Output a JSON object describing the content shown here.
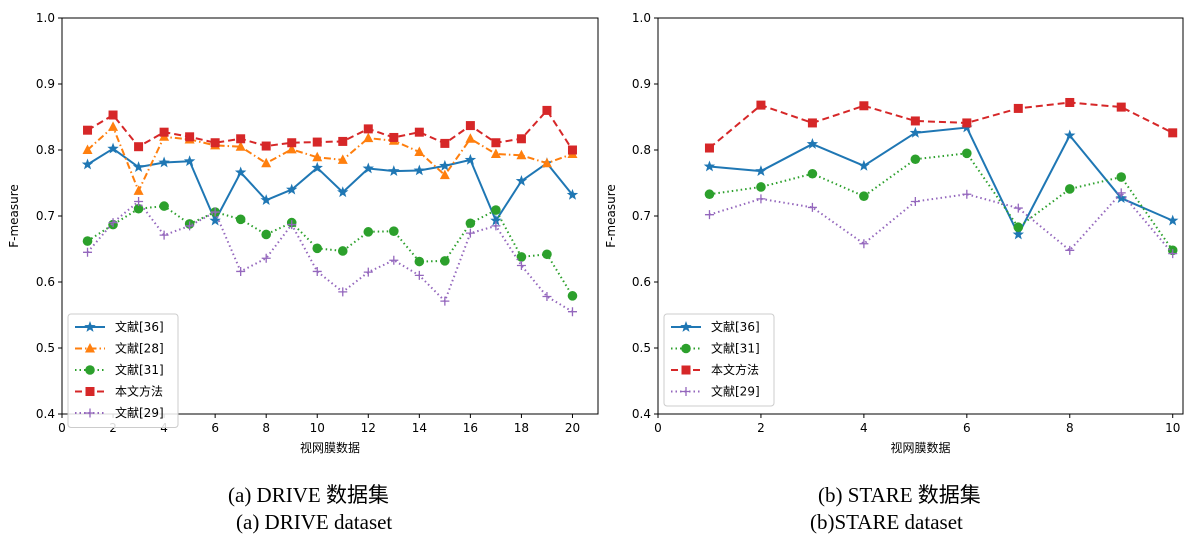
{
  "colors": {
    "blue": "#1f77b4",
    "orange": "#ff7f0e",
    "green": "#2ca02c",
    "red": "#d62728",
    "purple": "#9467bd"
  },
  "captions": {
    "a_cn": "(a) DRIVE 数据集",
    "a_en": "(a) DRIVE dataset",
    "b_cn": "(b) STARE 数据集",
    "b_en": "(b)STARE dataset"
  },
  "chart_data": [
    {
      "type": "line",
      "xlabel": "视网膜数据",
      "ylabel": "F-measure",
      "xlim": [
        0,
        21
      ],
      "ylim": [
        0.4,
        1.0
      ],
      "xticks": [
        0,
        2,
        4,
        6,
        8,
        10,
        12,
        14,
        16,
        18,
        20
      ],
      "yticks": [
        0.4,
        0.5,
        0.6,
        0.7,
        0.8,
        0.9,
        1.0
      ],
      "grid": false,
      "legend_position": "lower-left",
      "x": [
        1,
        2,
        3,
        4,
        5,
        6,
        7,
        8,
        9,
        10,
        11,
        12,
        13,
        14,
        15,
        16,
        17,
        18,
        19,
        20
      ],
      "series": [
        {
          "name": "文献[36]",
          "color": "#1f77b4",
          "style": "solid",
          "marker": "star",
          "values": [
            0.778,
            0.802,
            0.774,
            0.781,
            0.783,
            0.693,
            0.766,
            0.724,
            0.74,
            0.773,
            0.736,
            0.772,
            0.768,
            0.769,
            0.776,
            0.785,
            0.693,
            0.753,
            0.78,
            0.732
          ]
        },
        {
          "name": "文献[28]",
          "color": "#ff7f0e",
          "style": "dashdot",
          "marker": "triangle",
          "values": [
            0.8,
            0.835,
            0.738,
            0.82,
            0.816,
            0.807,
            0.805,
            0.78,
            0.801,
            0.789,
            0.785,
            0.818,
            0.814,
            0.797,
            0.762,
            0.817,
            0.794,
            0.792,
            0.78,
            0.794
          ]
        },
        {
          "name": "文献[31]",
          "color": "#2ca02c",
          "style": "dotted",
          "marker": "circle",
          "values": [
            0.662,
            0.687,
            0.711,
            0.715,
            0.688,
            0.706,
            0.695,
            0.672,
            0.69,
            0.651,
            0.647,
            0.676,
            0.677,
            0.631,
            0.632,
            0.689,
            0.709,
            0.638,
            0.642,
            0.579
          ]
        },
        {
          "name": "本文方法",
          "color": "#d62728",
          "style": "dashed",
          "marker": "square",
          "values": [
            0.83,
            0.853,
            0.805,
            0.827,
            0.82,
            0.811,
            0.817,
            0.806,
            0.811,
            0.812,
            0.813,
            0.832,
            0.819,
            0.827,
            0.81,
            0.837,
            0.811,
            0.817,
            0.86,
            0.8
          ]
        },
        {
          "name": "文献[29]",
          "color": "#9467bd",
          "style": "dotted",
          "marker": "plus",
          "values": [
            0.645,
            0.69,
            0.722,
            0.671,
            0.685,
            0.706,
            0.616,
            0.636,
            0.687,
            0.616,
            0.585,
            0.615,
            0.633,
            0.61,
            0.571,
            0.674,
            0.685,
            0.625,
            0.578,
            0.555
          ]
        }
      ]
    },
    {
      "type": "line",
      "xlabel": "视网膜数据",
      "ylabel": "F-measure",
      "xlim": [
        0,
        10.2
      ],
      "ylim": [
        0.4,
        1.0
      ],
      "xticks": [
        0,
        2,
        4,
        6,
        8,
        10
      ],
      "yticks": [
        0.4,
        0.5,
        0.6,
        0.7,
        0.8,
        0.9,
        1.0
      ],
      "grid": false,
      "legend_position": "lower-left",
      "x": [
        1,
        2,
        3,
        4,
        5,
        6,
        7,
        8,
        9,
        10
      ],
      "series": [
        {
          "name": "文献[36]",
          "color": "#1f77b4",
          "style": "solid",
          "marker": "star",
          "values": [
            0.775,
            0.768,
            0.809,
            0.776,
            0.826,
            0.834,
            0.672,
            0.822,
            0.727,
            0.693
          ]
        },
        {
          "name": "文献[31]",
          "color": "#2ca02c",
          "style": "dotted",
          "marker": "circle",
          "values": [
            0.733,
            0.744,
            0.764,
            0.73,
            0.786,
            0.795,
            0.683,
            0.741,
            0.759,
            0.648
          ]
        },
        {
          "name": "本文方法",
          "color": "#d62728",
          "style": "dashed",
          "marker": "square",
          "values": [
            0.803,
            0.868,
            0.841,
            0.867,
            0.844,
            0.841,
            0.863,
            0.872,
            0.865,
            0.826
          ]
        },
        {
          "name": "文献[29]",
          "color": "#9467bd",
          "style": "dotted",
          "marker": "plus",
          "values": [
            0.702,
            0.726,
            0.713,
            0.658,
            0.722,
            0.733,
            0.712,
            0.648,
            0.735,
            0.643
          ]
        }
      ]
    }
  ]
}
